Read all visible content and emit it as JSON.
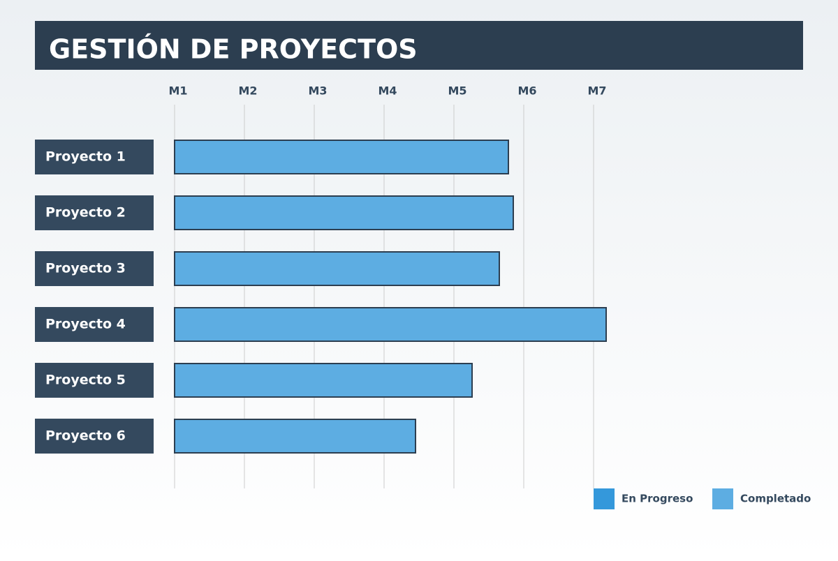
{
  "chart_data": {
    "type": "gantt",
    "title": "GESTIÓN DE PROYECTOS",
    "categories": [
      "Proyecto 1",
      "Proyecto 2",
      "Proyecto 3",
      "Proyecto 4",
      "Proyecto 5",
      "Proyecto 6"
    ],
    "series": [
      {
        "name": "En Progreso",
        "color": "#3498db",
        "values": [
          null,
          null,
          null,
          null,
          null,
          null
        ]
      },
      {
        "name": "Completado",
        "color": "#5dade2",
        "values": [
          5.78,
          5.85,
          5.65,
          7.18,
          5.26,
          4.45
        ]
      }
    ],
    "xlim": [
      1,
      7
    ],
    "xticks": [
      {
        "value": 1,
        "label": "M1"
      },
      {
        "value": 2,
        "label": "M2"
      },
      {
        "value": 3,
        "label": "M3"
      },
      {
        "value": 4,
        "label": "M4"
      },
      {
        "value": 5,
        "label": "M5"
      },
      {
        "value": 6,
        "label": "M6"
      },
      {
        "value": 7,
        "label": "M7"
      }
    ],
    "grid": true
  }
}
